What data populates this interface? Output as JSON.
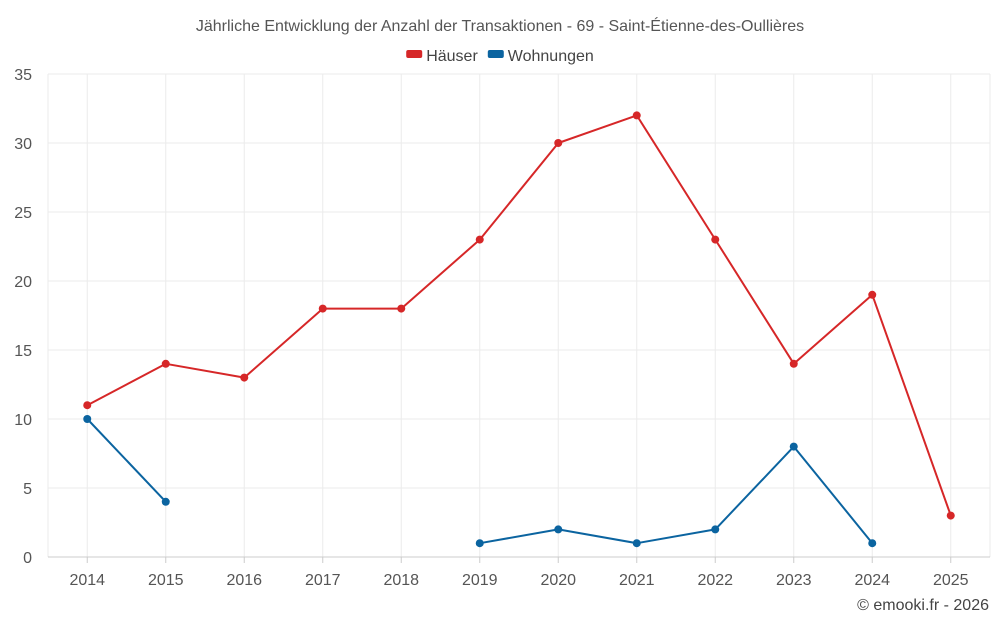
{
  "chart_data": {
    "type": "line",
    "title": "Jährliche Entwicklung der Anzahl der Transaktionen - 69 - Saint-Étienne-des-Oullières",
    "xlabel": "",
    "ylabel": "",
    "categories": [
      "2014",
      "2015",
      "2016",
      "2017",
      "2018",
      "2019",
      "2020",
      "2021",
      "2022",
      "2023",
      "2024",
      "2025"
    ],
    "ylim": [
      0,
      35
    ],
    "yticks": [
      0,
      5,
      10,
      15,
      20,
      25,
      30,
      35
    ],
    "grid": true,
    "legend_position": "top-center",
    "series": [
      {
        "name": "Häuser",
        "color": "#d62728",
        "values": [
          11,
          14,
          13,
          18,
          18,
          23,
          30,
          32,
          23,
          14,
          19,
          3
        ]
      },
      {
        "name": "Wohnungen",
        "color": "#0b64a0",
        "values": [
          10,
          4,
          null,
          null,
          null,
          1,
          2,
          1,
          2,
          8,
          1,
          null
        ]
      }
    ]
  },
  "credit": "© emooki.fr - 2026"
}
